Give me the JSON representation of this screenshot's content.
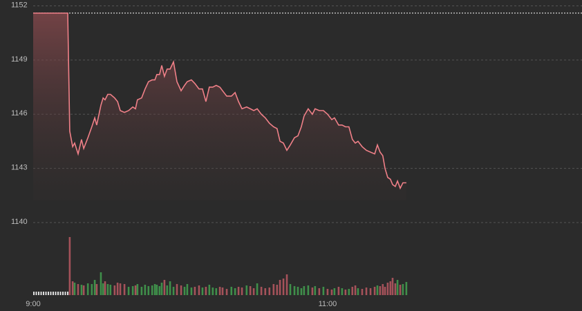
{
  "chart_data": {
    "type": "line",
    "x": [
      540,
      554.1,
      554.9,
      556.1,
      556.9,
      558.3,
      559.7,
      560.6,
      562.3,
      563.9,
      565.1,
      565.9,
      567.6,
      568.5,
      569.3,
      570.4,
      571.5,
      573.2,
      574.4,
      575.5,
      577.2,
      578.9,
      580.6,
      581.7,
      582.5,
      584.2,
      585.6,
      587.0,
      588.5,
      589.6,
      590.4,
      591.5,
      592.4,
      593.5,
      594.6,
      595.8,
      597.2,
      598.6,
      600.3,
      601.7,
      602.8,
      604.5,
      605.9,
      607.6,
      609.0,
      610.4,
      611.8,
      613.2,
      614.6,
      616.1,
      617.2,
      618.9,
      620.8,
      622.3,
      623.7,
      625.1,
      627.0,
      628.5,
      629.9,
      631.3,
      633.0,
      634.6,
      636.3,
      638.0,
      639.4,
      640.6,
      642.0,
      643.4,
      644.8,
      646.5,
      647.9,
      649.3,
      650.4,
      652.1,
      653.8,
      654.9,
      656.6,
      658.3,
      660.0,
      661.7,
      662.8,
      664.5,
      665.9,
      667.3,
      668.7,
      670.1,
      671.3,
      672.4,
      674.1,
      675.8,
      677.5,
      679.2,
      680.3,
      681.4,
      682.5,
      683.4,
      684.5,
      685.6,
      686.5,
      687.6,
      688.5,
      689.6,
      690.7,
      692.1
    ],
    "values": [
      1151.6,
      1151.6,
      1145.06,
      1144.2,
      1144.4,
      1143.8,
      1144.6,
      1144.1,
      1144.7,
      1145.3,
      1145.8,
      1145.4,
      1146.5,
      1146.9,
      1146.8,
      1147.1,
      1147.1,
      1146.9,
      1146.7,
      1146.2,
      1146.1,
      1146.2,
      1146.4,
      1146.3,
      1146.8,
      1146.9,
      1147.4,
      1147.8,
      1147.9,
      1147.9,
      1148.2,
      1148.2,
      1148.7,
      1148.1,
      1148.5,
      1148.5,
      1148.9,
      1147.8,
      1147.3,
      1147.6,
      1147.8,
      1147.9,
      1147.7,
      1147.4,
      1147.4,
      1146.7,
      1147.5,
      1147.5,
      1147.6,
      1147.5,
      1147.3,
      1147.0,
      1147.0,
      1147.2,
      1146.7,
      1146.3,
      1146.4,
      1146.3,
      1146.2,
      1146.3,
      1146.0,
      1145.8,
      1145.5,
      1145.3,
      1145.2,
      1144.5,
      1144.4,
      1144.0,
      1144.3,
      1144.7,
      1144.8,
      1145.3,
      1145.9,
      1146.3,
      1146.0,
      1146.3,
      1146.2,
      1146.2,
      1146.0,
      1145.7,
      1145.8,
      1145.4,
      1145.4,
      1145.3,
      1145.3,
      1144.6,
      1144.4,
      1144.5,
      1144.2,
      1144.0,
      1143.9,
      1143.8,
      1144.3,
      1143.9,
      1143.7,
      1143.0,
      1142.5,
      1142.4,
      1142.1,
      1142.0,
      1142.3,
      1141.9,
      1142.2,
      1142.2
    ],
    "volume": [
      null,
      null,
      84,
      20,
      18,
      16,
      15,
      14,
      17,
      16,
      22,
      16,
      33,
      17,
      20,
      16,
      15,
      14,
      18,
      17,
      16,
      12,
      13,
      14,
      16,
      12,
      15,
      13,
      14,
      16,
      15,
      13,
      18,
      22,
      14,
      20,
      12,
      16,
      14,
      12,
      16,
      11,
      12,
      14,
      11,
      12,
      15,
      11,
      10,
      12,
      11,
      9,
      12,
      10,
      12,
      11,
      14,
      13,
      10,
      17,
      12,
      10,
      11,
      16,
      15,
      22,
      24,
      30,
      16,
      13,
      12,
      10,
      13,
      14,
      11,
      13,
      10,
      12,
      9,
      8,
      10,
      12,
      10,
      8,
      9,
      12,
      14,
      10,
      9,
      11,
      10,
      12,
      14,
      13,
      16,
      12,
      18,
      20,
      25,
      17,
      22,
      15,
      16,
      19
    ],
    "color": "#f08088",
    "up_color": "#3f8f4a",
    "down_color": "#a5525a",
    "reference_color": "#e8e8e8",
    "reference": 1151.6,
    "xlim": [
      540,
      763.7
    ],
    "xticks": [
      {
        "value": 540,
        "label": "9:00"
      },
      {
        "value": 660,
        "label": "11:00"
      }
    ],
    "ylim": [
      1140,
      1152
    ],
    "yticks": [
      1140,
      1143,
      1146,
      1149,
      1152
    ],
    "grid": true
  }
}
